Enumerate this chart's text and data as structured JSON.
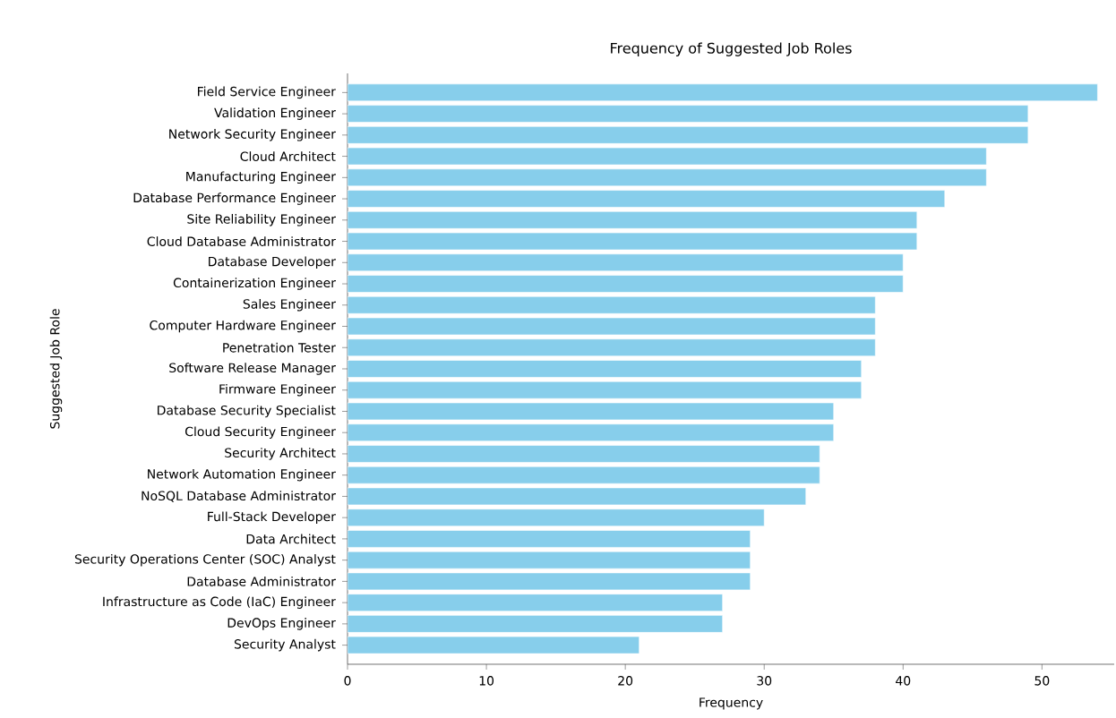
{
  "chart_data": {
    "type": "bar",
    "orientation": "horizontal",
    "title": "Frequency of Suggested Job Roles",
    "xlabel": "Frequency",
    "ylabel": "Suggested Job Role",
    "categories": [
      "Field Service Engineer",
      "Validation Engineer",
      "Network Security Engineer",
      "Cloud Architect",
      "Manufacturing Engineer",
      "Database Performance Engineer",
      "Site Reliability Engineer",
      "Cloud Database Administrator",
      "Database Developer",
      "Containerization Engineer",
      "Sales Engineer",
      "Computer Hardware Engineer",
      "Penetration Tester",
      "Software Release Manager",
      "Firmware Engineer",
      "Database Security Specialist",
      "Cloud Security Engineer",
      "Security Architect",
      "Network Automation Engineer",
      "NoSQL Database Administrator",
      "Full-Stack Developer",
      "Data Architect",
      "Security Operations Center (SOC) Analyst",
      "Database Administrator",
      "Infrastructure as Code (IaC) Engineer",
      "DevOps Engineer",
      "Security Analyst"
    ],
    "values": [
      54,
      49,
      49,
      46,
      46,
      43,
      41,
      41,
      40,
      40,
      38,
      38,
      38,
      37,
      37,
      35,
      35,
      34,
      34,
      33,
      30,
      29,
      29,
      29,
      27,
      27,
      21
    ],
    "color": "#87ceeb",
    "xlim": [
      0,
      55.2
    ],
    "xticks": [
      0,
      10,
      20,
      30,
      40,
      50
    ],
    "grid": false
  }
}
